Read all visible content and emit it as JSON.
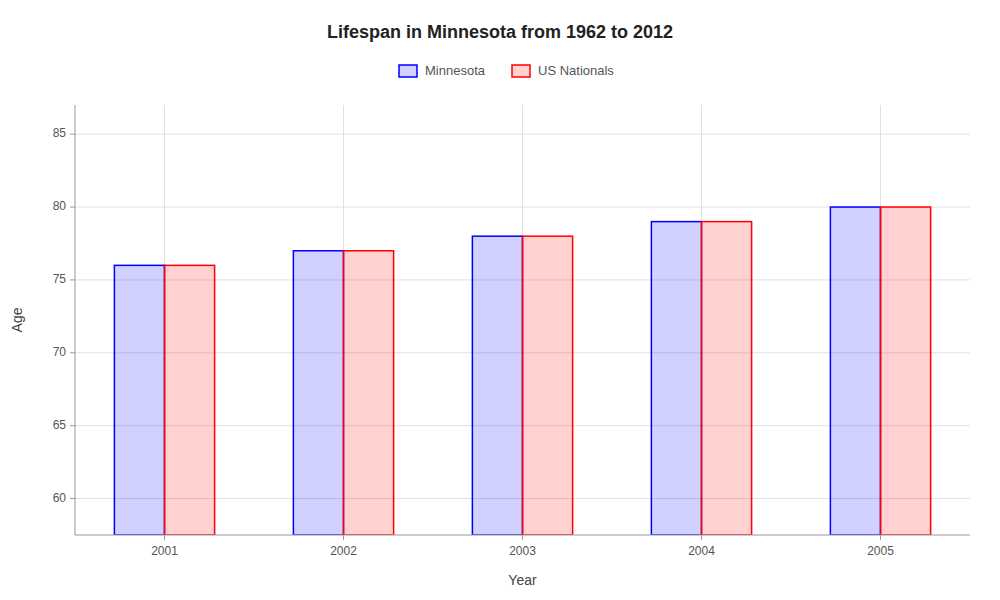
{
  "chart_data": {
    "type": "bar",
    "title": "Lifespan in Minnesota from 1962 to 2012",
    "x_label": "Year",
    "y_label": "Age",
    "categories": [
      "2001",
      "2002",
      "2003",
      "2004",
      "2005"
    ],
    "series": [
      {
        "name": "Minnesota",
        "color": "#0000ff",
        "values": [
          76,
          77,
          78,
          79,
          80
        ]
      },
      {
        "name": "US Nationals",
        "color": "#ff0000",
        "values": [
          76,
          77,
          78,
          79,
          80
        ]
      }
    ],
    "ylim": [
      57.5,
      87
    ],
    "yticks": [
      60,
      65,
      70,
      75,
      80,
      85
    ],
    "grid": true,
    "legend": "top"
  }
}
